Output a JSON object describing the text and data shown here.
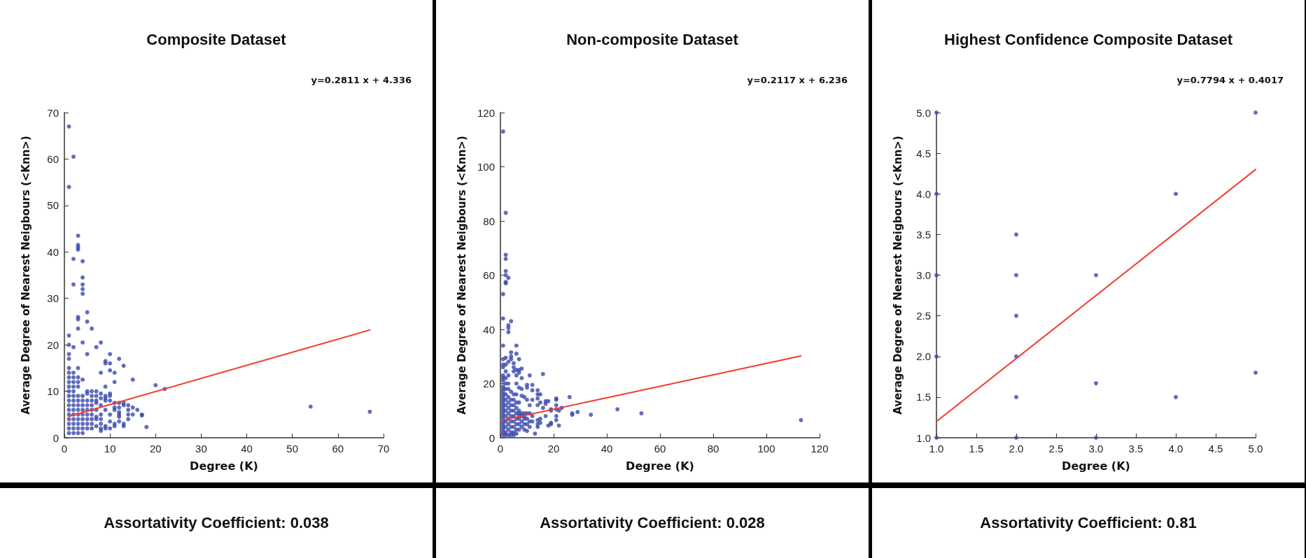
{
  "chart_data": [
    {
      "type": "scatter",
      "title": "Composite Dataset",
      "xlabel": "Degree (K)",
      "ylabel": "Average Degree of Nearest Neigbours (<Knn>)",
      "annotations": [
        "y=0.2811 x + 4.336",
        "Assortativity Coefficient: 0.038"
      ],
      "xlim": [
        0,
        70
      ],
      "ylim": [
        0,
        70
      ],
      "xticks": [
        0,
        10,
        20,
        30,
        40,
        50,
        60,
        70
      ],
      "yticks": [
        0,
        10,
        20,
        30,
        40,
        50,
        60,
        70
      ],
      "grid": false,
      "marker": "circle",
      "series": [
        {
          "color": "#3949ab",
          "x": [
            1,
            1,
            1,
            1,
            1,
            1,
            1,
            1,
            1,
            1,
            1,
            1,
            1,
            1,
            1,
            1,
            1,
            1,
            1,
            1,
            1,
            2,
            2,
            2,
            2,
            2,
            2,
            2,
            2,
            2,
            2,
            2,
            2,
            2,
            2,
            2,
            2,
            2,
            2,
            3,
            3,
            3,
            3,
            3,
            3,
            3,
            3,
            3,
            3,
            3,
            3,
            3,
            3,
            3,
            3,
            3,
            3,
            3,
            3,
            4,
            4,
            4,
            4,
            4,
            4,
            4,
            4,
            4,
            4,
            4,
            4,
            4,
            4,
            4,
            4,
            5,
            5,
            5,
            5,
            5,
            5,
            5,
            5,
            5,
            5,
            5,
            5,
            6,
            6,
            6,
            6,
            6,
            6,
            6,
            6,
            6,
            6,
            7,
            7,
            7,
            7,
            7,
            7,
            7,
            7,
            7,
            8,
            8,
            8,
            8,
            8,
            8,
            8,
            8,
            8,
            8,
            9,
            9,
            9,
            9,
            9,
            9,
            9,
            9,
            9,
            10,
            10,
            10,
            10,
            10,
            10,
            10,
            10,
            10,
            11,
            11,
            11,
            11,
            11,
            11,
            11,
            12,
            12,
            12,
            12,
            12,
            12,
            12,
            13,
            13,
            13,
            13,
            13,
            14,
            14,
            14,
            14,
            15,
            15,
            15,
            16,
            17,
            17,
            18,
            20,
            22,
            54,
            67
          ],
          "values": [
            67,
            54,
            22,
            20,
            18,
            17,
            15,
            14,
            13,
            12,
            11,
            10,
            9,
            8,
            7,
            6,
            5,
            4,
            3,
            2,
            1,
            60.5,
            38.5,
            33,
            19.5,
            14,
            13,
            12,
            11,
            10,
            9,
            8,
            7,
            6,
            5,
            4,
            3,
            2,
            1,
            43.5,
            41.5,
            41,
            40.5,
            26,
            25.5,
            23.5,
            15,
            13,
            12,
            11,
            9,
            8,
            7,
            6,
            5,
            4,
            3,
            2,
            1,
            38,
            34.5,
            33,
            32,
            31,
            20.5,
            12.5,
            9,
            8,
            7,
            6,
            5,
            4,
            3,
            2,
            1,
            27,
            25,
            18,
            10,
            9.5,
            8,
            7,
            6,
            5,
            4,
            3,
            2,
            23.5,
            10,
            9,
            8,
            7,
            6,
            5,
            4,
            3,
            2,
            19.5,
            10,
            9,
            8,
            7.5,
            6,
            4.5,
            4,
            2.5,
            20.5,
            14,
            9.5,
            8.5,
            7,
            5,
            4,
            3,
            2,
            1.5,
            16.5,
            16,
            11,
            9,
            8.5,
            8,
            6,
            2.5,
            2,
            18,
            16,
            14.5,
            9.5,
            9,
            8,
            5,
            3.5,
            2,
            14,
            12,
            7.5,
            6.5,
            6,
            3,
            2.5,
            17,
            7.5,
            6.5,
            5.5,
            5,
            4.5,
            3.5,
            15.5,
            7.5,
            7,
            3,
            2.5,
            7,
            6,
            5,
            4,
            12.5,
            6.5,
            5,
            6,
            5,
            4.8,
            2.3,
            11.3,
            10.5,
            6.7,
            5.6
          ]
        },
        {
          "type": "line",
          "marker": "none",
          "color": "#f03a2a",
          "x": [
            1,
            67
          ],
          "values": [
            4.6,
            23.2
          ]
        }
      ]
    },
    {
      "type": "scatter",
      "title": "Non-composite Dataset",
      "xlabel": "Degree (K)",
      "ylabel": "Average Degree of Nearest Neigbours (<Knn>)",
      "annotations": [
        "y=0.2117 x + 6.236",
        "Assortativity Coefficient: 0.028"
      ],
      "xlim": [
        0,
        120
      ],
      "ylim": [
        0,
        120
      ],
      "xticks": [
        0,
        20,
        40,
        60,
        80,
        100,
        120
      ],
      "yticks": [
        0,
        20,
        40,
        60,
        80,
        100,
        120
      ],
      "grid": false,
      "marker": "circle",
      "series": [
        {
          "color": "#3949ab",
          "x": [
            1,
            1,
            1,
            1,
            1,
            1,
            1,
            1,
            1,
            1,
            1,
            1,
            1,
            1,
            1,
            1,
            1,
            1,
            1,
            1,
            1,
            1,
            1,
            1,
            1,
            1,
            1,
            1,
            1,
            2,
            2,
            2,
            2,
            2,
            2,
            2,
            2,
            2,
            2,
            2,
            2,
            2,
            2,
            2,
            2,
            2,
            2,
            2,
            2,
            2,
            2,
            3,
            3,
            3,
            3,
            3,
            3,
            3,
            3,
            3,
            3,
            3,
            3,
            3,
            3,
            3,
            3,
            4,
            4,
            4,
            4,
            4,
            4,
            4,
            4,
            4,
            4,
            4,
            4,
            4,
            5,
            5,
            5,
            5,
            5,
            5,
            5,
            5,
            5,
            5,
            5,
            5,
            6,
            6,
            6,
            6,
            6,
            6,
            6,
            6,
            6,
            6,
            6,
            6,
            6,
            7,
            7,
            7,
            7,
            7,
            7,
            7,
            7,
            7,
            7,
            7,
            8,
            8,
            8,
            8,
            8,
            8,
            8,
            8,
            9,
            9,
            9,
            9,
            9,
            9,
            10,
            10,
            10,
            10,
            10,
            10,
            10,
            11,
            11,
            11,
            11,
            11,
            12,
            12,
            12,
            12,
            12,
            13,
            14,
            14,
            14,
            14,
            14,
            14,
            14,
            15,
            15,
            15,
            15,
            16,
            16,
            17,
            17,
            17,
            18,
            18,
            19,
            19,
            19,
            19,
            21,
            21,
            21,
            21,
            21,
            21,
            22,
            22,
            23,
            26,
            27,
            27,
            29,
            34,
            44,
            53,
            113
          ],
          "values": [
            113,
            53,
            44,
            34,
            29,
            27,
            26,
            23,
            22,
            21,
            19,
            18,
            17,
            16,
            15,
            14,
            13,
            12,
            11,
            10,
            9,
            8,
            7,
            6,
            5,
            4,
            3,
            2,
            1,
            83,
            67.5,
            66,
            61.5,
            60,
            57.5,
            57,
            29.5,
            27,
            24.5,
            22,
            20,
            18,
            16,
            14,
            12,
            10,
            8,
            6,
            4,
            2,
            1,
            59,
            41.5,
            40.5,
            39,
            28,
            23,
            20,
            18,
            15,
            13,
            11,
            9,
            7,
            5,
            3,
            1,
            43,
            31.5,
            30,
            29,
            17,
            14,
            12,
            10,
            8,
            6,
            4,
            2,
            1,
            27.5,
            26,
            24.5,
            16,
            14,
            12,
            10,
            8,
            6,
            4,
            2,
            1,
            34,
            31,
            25,
            23,
            20,
            16,
            13,
            11,
            9,
            7,
            5,
            3,
            1.5,
            29,
            25,
            24,
            18.5,
            13,
            10,
            9,
            8,
            7,
            5,
            3,
            25.5,
            22,
            18,
            15.5,
            9,
            8,
            6,
            4,
            15,
            9,
            8,
            7,
            5,
            3,
            19.5,
            18.5,
            14,
            9,
            7,
            5,
            2.5,
            23,
            12,
            9,
            6,
            4,
            19.5,
            17.5,
            14,
            8,
            6,
            1.5,
            17.5,
            16,
            14.5,
            12,
            6.5,
            5,
            4,
            16,
            13,
            7,
            5.5,
            23.5,
            11,
            13.5,
            12.5,
            8,
            13.5,
            4.5,
            10.5,
            10,
            5.5,
            5,
            14.5,
            14,
            12,
            10.5,
            8,
            6.5,
            10,
            4.5,
            11,
            15,
            9,
            8.5,
            9.5,
            8.5,
            10.5,
            9,
            6.5
          ]
        },
        {
          "type": "line",
          "marker": "none",
          "color": "#f03a2a",
          "x": [
            1,
            113
          ],
          "values": [
            6.5,
            30.2
          ]
        }
      ]
    },
    {
      "type": "scatter",
      "title": "Highest Confidence Composite Dataset",
      "xlabel": "Degree (K)",
      "ylabel": "Average Degree of Nearest Neigbours (<Knn>)",
      "annotations": [
        "y=0.7794 x + 0.4017",
        "Assortativity Coefficient: 0.81"
      ],
      "xlim": [
        1,
        5
      ],
      "ylim": [
        1,
        5
      ],
      "xticks": [
        {
          "value": 1,
          "label": "1.0"
        },
        1.5,
        {
          "value": 2,
          "label": "2.0"
        },
        2.5,
        {
          "value": 3,
          "label": "3.0"
        },
        3.5,
        {
          "value": 4,
          "label": "4.0"
        },
        4.5,
        {
          "value": 5,
          "label": "5.0"
        }
      ],
      "yticks": [
        {
          "value": 1,
          "label": "1.0"
        },
        1.5,
        {
          "value": 2,
          "label": "2.0"
        },
        2.5,
        {
          "value": 3,
          "label": "3.0"
        },
        3.5,
        {
          "value": 4,
          "label": "4.0"
        },
        4.5,
        {
          "value": 5,
          "label": "5.0"
        }
      ],
      "grid": false,
      "marker": "circle",
      "series": [
        {
          "color": "#3949ab",
          "x": [
            1,
            1,
            1,
            1,
            1,
            2,
            2,
            2,
            2,
            2,
            2,
            3,
            3,
            3,
            4,
            4,
            5,
            5
          ],
          "values": [
            5,
            4,
            3,
            2,
            1,
            3.5,
            3,
            2.5,
            2,
            1.5,
            1,
            3,
            1.67,
            1,
            4,
            1.5,
            5,
            1.8
          ]
        },
        {
          "type": "line",
          "marker": "none",
          "color": "#f03a2a",
          "x": [
            1,
            5
          ],
          "values": [
            1.2,
            4.3
          ]
        }
      ]
    }
  ]
}
